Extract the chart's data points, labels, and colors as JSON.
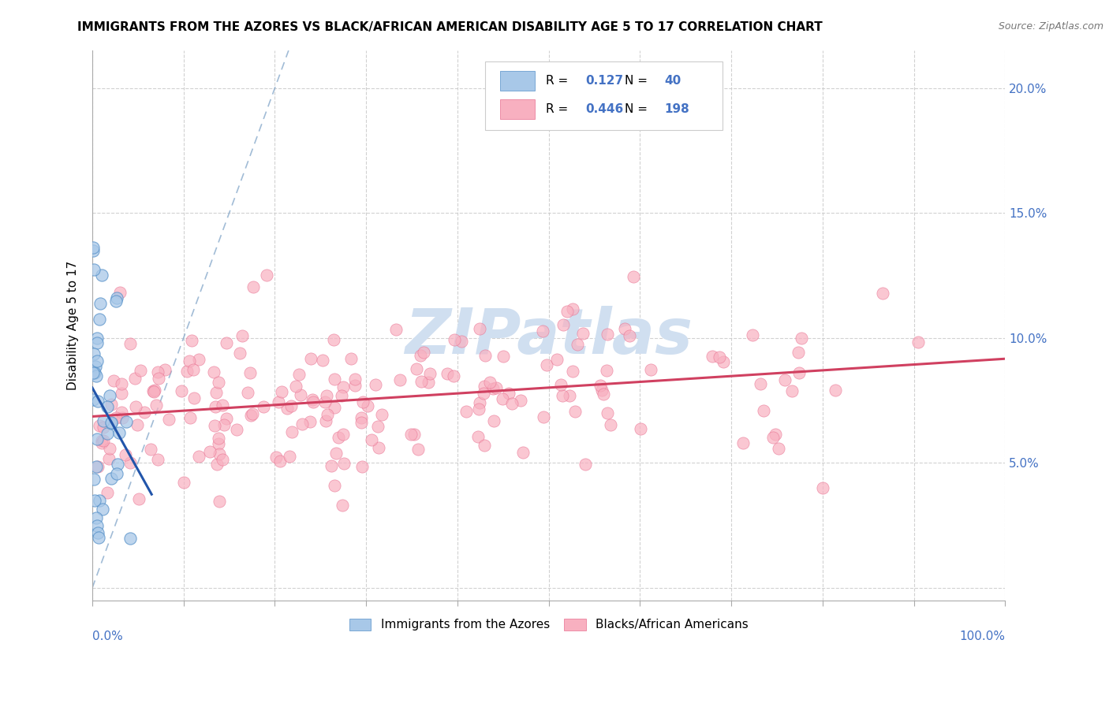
{
  "title": "IMMIGRANTS FROM THE AZORES VS BLACK/AFRICAN AMERICAN DISABILITY AGE 5 TO 17 CORRELATION CHART",
  "source": "Source: ZipAtlas.com",
  "ylabel": "Disability Age 5 to 17",
  "xlim": [
    0.0,
    1.0
  ],
  "ylim": [
    -0.005,
    0.215
  ],
  "legend_R1": "0.127",
  "legend_N1": "40",
  "legend_R2": "0.446",
  "legend_N2": "198",
  "color_blue_fill": "#a8c8e8",
  "color_blue_edge": "#5590c8",
  "color_blue_line": "#2255aa",
  "color_pink_fill": "#f8b0c0",
  "color_pink_edge": "#e87090",
  "color_pink_line": "#d04060",
  "color_diag": "#8aabcc",
  "legend_text_color": "#4472c4",
  "watermark": "ZIPatlas",
  "watermark_color": "#d0dff0",
  "background_color": "#ffffff",
  "grid_color": "#cccccc",
  "ytick_color": "#4472c4",
  "xtick_color": "#4472c4",
  "title_fontsize": 11,
  "source_fontsize": 9,
  "tick_fontsize": 11
}
